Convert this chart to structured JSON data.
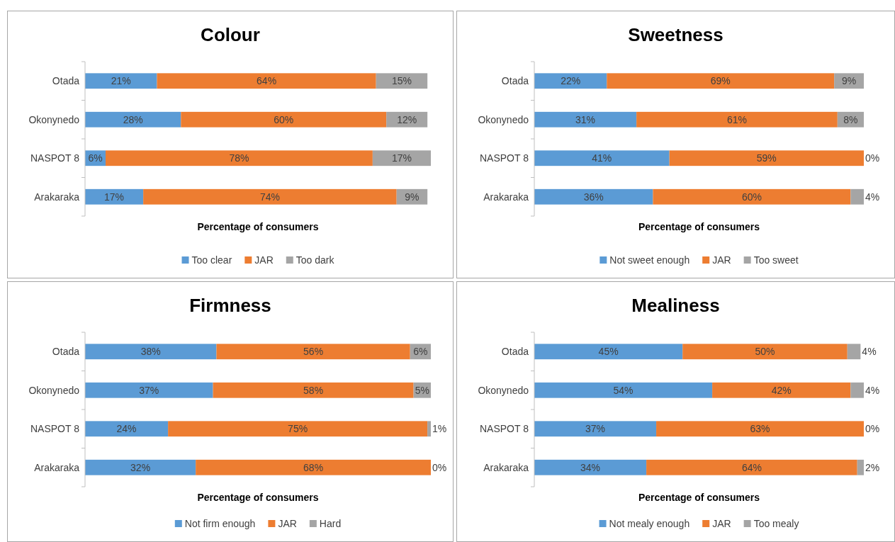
{
  "chart_data": [
    {
      "type": "bar",
      "orientation": "horizontal",
      "stacked": true,
      "title": "Colour",
      "xlabel": "Percentage of consumers",
      "categories": [
        "Otada",
        "Okonynedo",
        "NASPOT 8",
        "Arakaraka"
      ],
      "xlim": [
        0,
        101
      ],
      "tick_labels": "y",
      "legend": "bottom",
      "grid": false,
      "series": [
        {
          "name": "Too clear",
          "color": "#5b9bd5",
          "values": [
            21,
            28,
            6,
            17
          ],
          "value_labels": [
            "21%",
            "28%",
            "6%",
            "17%"
          ]
        },
        {
          "name": "JAR",
          "color": "#ed7d31",
          "values": [
            64,
            60,
            78,
            74
          ],
          "value_labels": [
            "64%",
            "60%",
            "78%",
            "74%"
          ]
        },
        {
          "name": "Too dark",
          "color": "#a5a5a5",
          "values": [
            15,
            12,
            17,
            9
          ],
          "value_labels": [
            "15%",
            "12%",
            "17%",
            "9%"
          ]
        }
      ]
    },
    {
      "type": "bar",
      "orientation": "horizontal",
      "stacked": true,
      "title": "Sweetness",
      "xlabel": "Percentage of consumers",
      "categories": [
        "Otada",
        "Okonynedo",
        "NASPOT 8",
        "Arakaraka"
      ],
      "xlim": [
        0,
        100
      ],
      "tick_labels": "y",
      "legend": "bottom",
      "grid": false,
      "series": [
        {
          "name": "Not sweet enough",
          "color": "#5b9bd5",
          "values": [
            22,
            31,
            41,
            36
          ],
          "value_labels": [
            "22%",
            "31%",
            "41%",
            "36%"
          ]
        },
        {
          "name": "JAR",
          "color": "#ed7d31",
          "values": [
            69,
            61,
            59,
            60
          ],
          "value_labels": [
            "69%",
            "61%",
            "59%",
            "60%"
          ]
        },
        {
          "name": "Too sweet",
          "color": "#a5a5a5",
          "values": [
            9,
            8,
            0,
            4
          ],
          "value_labels": [
            "9%",
            "8%",
            "0%",
            "4%"
          ]
        }
      ]
    },
    {
      "type": "bar",
      "orientation": "horizontal",
      "stacked": true,
      "title": "Firmness",
      "xlabel": "Percentage of consumers",
      "categories": [
        "Otada",
        "Okonynedo",
        "NASPOT 8",
        "Arakaraka"
      ],
      "xlim": [
        0,
        100
      ],
      "tick_labels": "y",
      "legend": "bottom",
      "grid": false,
      "series": [
        {
          "name": "Not firm enough",
          "color": "#5b9bd5",
          "values": [
            38,
            37,
            24,
            32
          ],
          "value_labels": [
            "38%",
            "37%",
            "24%",
            "32%"
          ]
        },
        {
          "name": "JAR",
          "color": "#ed7d31",
          "values": [
            56,
            58,
            75,
            68
          ],
          "value_labels": [
            "56%",
            "58%",
            "75%",
            "68%"
          ]
        },
        {
          "name": "Hard",
          "color": "#a5a5a5",
          "values": [
            6,
            5,
            1,
            0
          ],
          "value_labels": [
            "6%",
            "5%",
            "1%",
            "0%"
          ]
        }
      ]
    },
    {
      "type": "bar",
      "orientation": "horizontal",
      "stacked": true,
      "title": "Mealiness",
      "xlabel": "Percentage of consumers",
      "categories": [
        "Otada",
        "Okonynedo",
        "NASPOT 8",
        "Arakaraka"
      ],
      "xlim": [
        0,
        100
      ],
      "tick_labels": "y",
      "legend": "bottom",
      "grid": false,
      "series": [
        {
          "name": "Not mealy enough",
          "color": "#5b9bd5",
          "values": [
            45,
            54,
            37,
            34
          ],
          "value_labels": [
            "45%",
            "54%",
            "37%",
            "34%"
          ]
        },
        {
          "name": "JAR",
          "color": "#ed7d31",
          "values": [
            50,
            42,
            63,
            64
          ],
          "value_labels": [
            "50%",
            "42%",
            "63%",
            "64%"
          ]
        },
        {
          "name": "Too mealy",
          "color": "#a5a5a5",
          "values": [
            4,
            4,
            0,
            2
          ],
          "value_labels": [
            "4%",
            "4%",
            "0%",
            "2%"
          ]
        }
      ]
    }
  ]
}
